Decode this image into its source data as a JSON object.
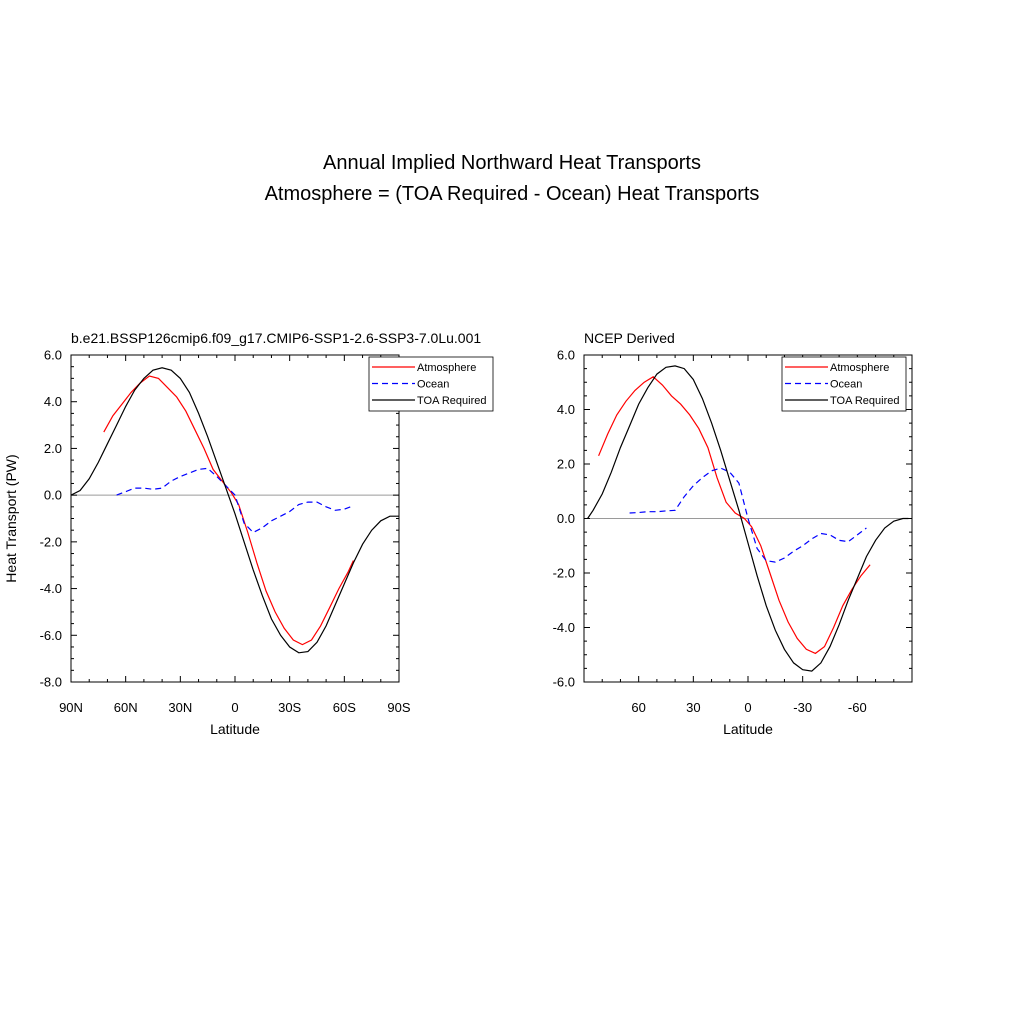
{
  "figure_title": {
    "line1": "Annual Implied Northward Heat Transports",
    "line2": "Atmosphere = (TOA Required - Ocean) Heat Transports"
  },
  "colors": {
    "Atmosphere": "#ff0000",
    "Ocean": "#0000ff",
    "TOA Required": "#000000",
    "zero_line": "#9a9a9a"
  },
  "chart_data": [
    {
      "type": "line",
      "title": "b.e21.BSSP126cmip6.f09_g17.CMIP6-SSP1-2.6-SSP3-7.0Lu.001",
      "xlabel": "Latitude",
      "ylabel": "Heat Transport (PW)",
      "x_direction": "north-to-south",
      "xlim": [
        90,
        -90
      ],
      "ylim": [
        -8,
        6
      ],
      "xticks": [
        90,
        60,
        30,
        0,
        -30,
        -60,
        -90
      ],
      "xtick_labels": [
        "90N",
        "60N",
        "30N",
        "0",
        "30S",
        "60S",
        "90S"
      ],
      "yticks": [
        -8,
        -6,
        -4,
        -2,
        0,
        2,
        4,
        6
      ],
      "ytick_labels": [
        "-8.0",
        "-6.0",
        "-4.0",
        "-2.0",
        "0.0",
        "2.0",
        "4.0",
        "6.0"
      ],
      "legend": [
        "Atmosphere",
        "Ocean",
        "TOA Required"
      ],
      "legend_position": "top-right",
      "grid": false,
      "series": [
        {
          "name": "Atmosphere",
          "style": "solid",
          "x": [
            72,
            67,
            62,
            57,
            52,
            47,
            42,
            37,
            32,
            27,
            22,
            17,
            12,
            7,
            2,
            -2,
            -7,
            -12,
            -17,
            -22,
            -27,
            -32,
            -37,
            -42,
            -47,
            -52,
            -57,
            -62,
            -65
          ],
          "y": [
            2.7,
            3.4,
            3.9,
            4.4,
            4.8,
            5.1,
            5.0,
            4.6,
            4.2,
            3.6,
            2.8,
            2.0,
            1.1,
            0.6,
            0.1,
            -0.4,
            -1.6,
            -2.9,
            -4.1,
            -5.0,
            -5.7,
            -6.2,
            -6.4,
            -6.2,
            -5.6,
            -4.8,
            -4.0,
            -3.3,
            -2.8
          ]
        },
        {
          "name": "Ocean",
          "style": "dashed",
          "x": [
            65,
            60,
            55,
            50,
            45,
            40,
            35,
            30,
            25,
            20,
            15,
            10,
            5,
            0,
            -5,
            -10,
            -15,
            -20,
            -25,
            -30,
            -35,
            -40,
            -45,
            -50,
            -55,
            -60,
            -65
          ],
          "y": [
            0.0,
            0.15,
            0.3,
            0.3,
            0.25,
            0.3,
            0.6,
            0.8,
            0.95,
            1.1,
            1.15,
            0.8,
            0.4,
            0.0,
            -1.2,
            -1.6,
            -1.4,
            -1.1,
            -0.9,
            -0.7,
            -0.4,
            -0.3,
            -0.3,
            -0.5,
            -0.65,
            -0.6,
            -0.45
          ]
        },
        {
          "name": "TOA Required",
          "style": "solid",
          "x": [
            90,
            85,
            80,
            75,
            70,
            65,
            60,
            55,
            50,
            45,
            40,
            35,
            30,
            25,
            20,
            15,
            10,
            5,
            0,
            -5,
            -10,
            -15,
            -20,
            -25,
            -30,
            -35,
            -40,
            -45,
            -50,
            -55,
            -60,
            -65,
            -70,
            -75,
            -80,
            -85,
            -90
          ],
          "y": [
            0.0,
            0.2,
            0.7,
            1.4,
            2.2,
            3.0,
            3.8,
            4.5,
            5.0,
            5.35,
            5.45,
            5.35,
            5.0,
            4.4,
            3.5,
            2.5,
            1.4,
            0.3,
            -0.8,
            -2.0,
            -3.2,
            -4.3,
            -5.3,
            -6.0,
            -6.5,
            -6.75,
            -6.7,
            -6.3,
            -5.6,
            -4.7,
            -3.8,
            -2.9,
            -2.1,
            -1.5,
            -1.1,
            -0.9,
            -0.9
          ]
        }
      ]
    },
    {
      "type": "line",
      "title": "NCEP Derived",
      "xlabel": "Latitude",
      "ylabel": "",
      "x_direction": "north-to-south",
      "xlim": [
        90,
        -90
      ],
      "ylim": [
        -6,
        6
      ],
      "xticks": [
        60,
        30,
        0,
        -30,
        -60
      ],
      "xtick_labels": [
        "60",
        "30",
        "0",
        "-30",
        "-60"
      ],
      "yticks": [
        -6,
        -4,
        -2,
        0,
        2,
        4,
        6
      ],
      "ytick_labels": [
        "-6.0",
        "-4.0",
        "-2.0",
        "0.0",
        "2.0",
        "4.0",
        "6.0"
      ],
      "legend": [
        "Atmosphere",
        "Ocean",
        "TOA Required"
      ],
      "legend_position": "top-right",
      "grid": false,
      "series": [
        {
          "name": "Atmosphere",
          "style": "solid",
          "x": [
            82,
            77,
            72,
            67,
            62,
            57,
            52,
            47,
            42,
            37,
            32,
            27,
            22,
            17,
            12,
            7,
            2,
            -2,
            -7,
            -12,
            -17,
            -22,
            -27,
            -32,
            -37,
            -42,
            -47,
            -52,
            -57,
            -62,
            -67
          ],
          "y": [
            2.3,
            3.1,
            3.8,
            4.3,
            4.7,
            5.0,
            5.2,
            4.9,
            4.5,
            4.2,
            3.8,
            3.3,
            2.6,
            1.5,
            0.6,
            0.2,
            0.0,
            -0.3,
            -1.0,
            -2.0,
            -3.0,
            -3.8,
            -4.4,
            -4.8,
            -4.95,
            -4.7,
            -4.0,
            -3.2,
            -2.6,
            -2.1,
            -1.7
          ]
        },
        {
          "name": "Ocean",
          "style": "dashed",
          "x": [
            65,
            60,
            55,
            50,
            45,
            40,
            35,
            30,
            25,
            20,
            15,
            10,
            5,
            0,
            -5,
            -10,
            -15,
            -20,
            -25,
            -30,
            -35,
            -40,
            -45,
            -50,
            -55,
            -60,
            -65
          ],
          "y": [
            0.2,
            0.22,
            0.25,
            0.25,
            0.28,
            0.3,
            0.8,
            1.2,
            1.5,
            1.75,
            1.85,
            1.7,
            1.3,
            0.0,
            -1.1,
            -1.55,
            -1.6,
            -1.45,
            -1.2,
            -1.0,
            -0.75,
            -0.55,
            -0.6,
            -0.8,
            -0.85,
            -0.6,
            -0.35
          ]
        },
        {
          "name": "TOA Required",
          "style": "solid",
          "x": [
            88,
            85,
            80,
            75,
            70,
            65,
            60,
            55,
            50,
            45,
            40,
            35,
            30,
            25,
            20,
            15,
            10,
            5,
            0,
            -5,
            -10,
            -15,
            -20,
            -25,
            -30,
            -35,
            -40,
            -45,
            -50,
            -55,
            -60,
            -65,
            -70,
            -75,
            -80,
            -85,
            -88
          ],
          "y": [
            0.0,
            0.3,
            0.9,
            1.7,
            2.6,
            3.4,
            4.2,
            4.8,
            5.3,
            5.55,
            5.6,
            5.5,
            5.1,
            4.4,
            3.5,
            2.5,
            1.4,
            0.3,
            -0.9,
            -2.1,
            -3.2,
            -4.1,
            -4.8,
            -5.3,
            -5.55,
            -5.6,
            -5.3,
            -4.7,
            -3.9,
            -3.0,
            -2.2,
            -1.4,
            -0.8,
            -0.35,
            -0.1,
            0.0,
            0.0
          ]
        }
      ]
    }
  ]
}
